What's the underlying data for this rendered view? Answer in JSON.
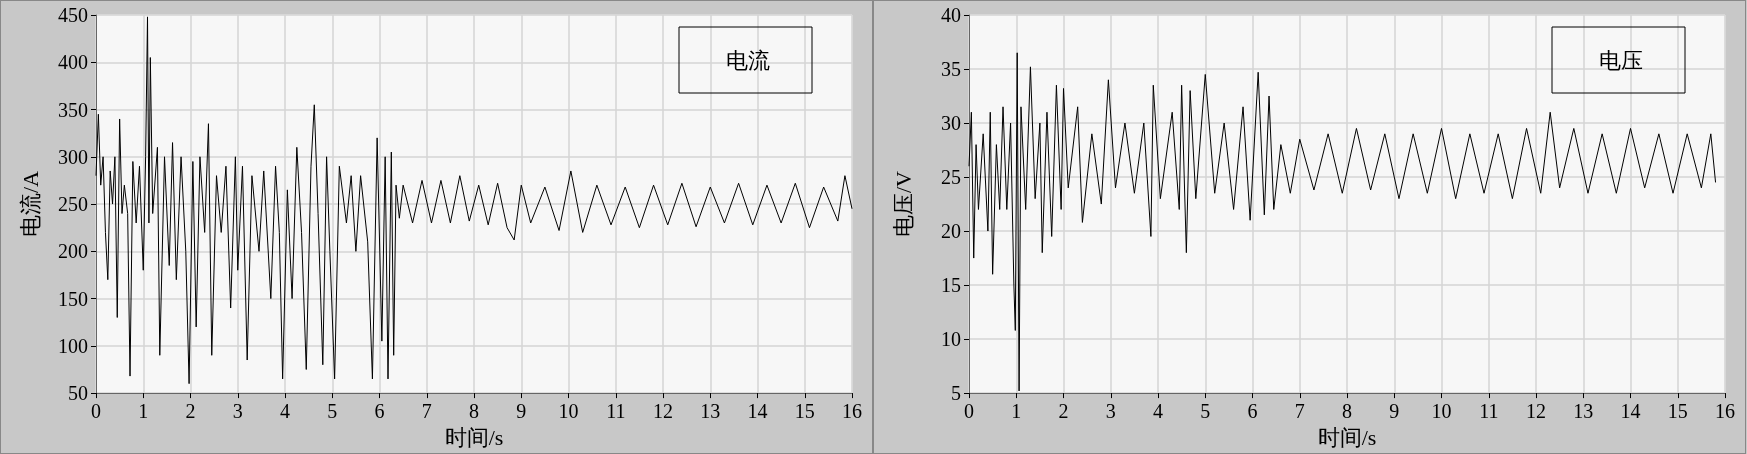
{
  "chart_data": [
    {
      "type": "line",
      "xlabel": "时间/s",
      "ylabel": "电流/A",
      "xlim": [
        0,
        16
      ],
      "xticks": [
        0,
        1,
        2,
        3,
        4,
        5,
        6,
        7,
        8,
        9,
        10,
        11,
        12,
        13,
        14,
        15,
        16
      ],
      "ylim": [
        50,
        450
      ],
      "yticks": [
        50,
        100,
        150,
        200,
        250,
        300,
        350,
        400,
        450
      ],
      "grid": true,
      "legend": "top right",
      "marker": "none",
      "line_style": "solid",
      "series": [
        {
          "name": "电流",
          "color": "#000000",
          "x": [
            0,
            0.05,
            0.1,
            0.15,
            0.2,
            0.25,
            0.3,
            0.35,
            0.4,
            0.45,
            0.5,
            0.55,
            0.6,
            0.67,
            0.72,
            0.78,
            0.85,
            0.92,
            1.0,
            1.05,
            1.09,
            1.12,
            1.15,
            1.2,
            1.3,
            1.35,
            1.45,
            1.55,
            1.62,
            1.7,
            1.8,
            1.9,
            1.97,
            2.05,
            2.12,
            2.2,
            2.3,
            2.38,
            2.45,
            2.55,
            2.65,
            2.75,
            2.85,
            2.95,
            3.0,
            3.1,
            3.2,
            3.3,
            3.45,
            3.55,
            3.7,
            3.8,
            3.88,
            3.95,
            4.05,
            4.15,
            4.25,
            4.35,
            4.45,
            4.55,
            4.62,
            4.7,
            4.8,
            4.88,
            4.95,
            5.05,
            5.15,
            5.3,
            5.4,
            5.5,
            5.6,
            5.75,
            5.85,
            5.95,
            6.05,
            6.12,
            6.18,
            6.25,
            6.3,
            6.35,
            6.42,
            6.5,
            6.7,
            6.9,
            7.1,
            7.3,
            7.5,
            7.7,
            7.9,
            8.1,
            8.3,
            8.5,
            8.7,
            8.85,
            9.0,
            9.2,
            9.5,
            9.8,
            10.05,
            10.3,
            10.6,
            10.9,
            11.2,
            11.5,
            11.8,
            12.1,
            12.4,
            12.7,
            13.0,
            13.3,
            13.6,
            13.9,
            14.2,
            14.5,
            14.8,
            15.1,
            15.4,
            15.7,
            15.85,
            16.0
          ],
          "values": [
            280,
            345,
            270,
            300,
            220,
            170,
            285,
            250,
            300,
            130,
            340,
            240,
            270,
            240,
            68,
            295,
            230,
            290,
            180,
            300,
            448,
            230,
            405,
            240,
            310,
            90,
            300,
            185,
            315,
            170,
            300,
            200,
            60,
            295,
            120,
            300,
            220,
            335,
            90,
            280,
            220,
            290,
            140,
            300,
            180,
            290,
            85,
            280,
            200,
            285,
            150,
            290,
            220,
            65,
            265,
            150,
            310,
            220,
            75,
            290,
            355,
            240,
            80,
            300,
            200,
            65,
            290,
            230,
            280,
            200,
            280,
            210,
            65,
            320,
            105,
            300,
            65,
            305,
            90,
            270,
            235,
            270,
            230,
            275,
            230,
            275,
            230,
            280,
            232,
            270,
            228,
            272,
            225,
            212,
            270,
            230,
            268,
            222,
            285,
            220,
            270,
            228,
            268,
            225,
            270,
            228,
            272,
            226,
            268,
            230,
            272,
            228,
            270,
            230,
            272,
            225,
            268,
            232,
            280,
            245
          ]
        }
      ]
    },
    {
      "type": "line",
      "xlabel": "时间/s",
      "ylabel": "电压/V",
      "xlim": [
        0,
        16
      ],
      "xticks": [
        0,
        1,
        2,
        3,
        4,
        5,
        6,
        7,
        8,
        9,
        10,
        11,
        12,
        13,
        14,
        15,
        16
      ],
      "ylim": [
        5,
        40
      ],
      "yticks": [
        5,
        10,
        15,
        20,
        25,
        30,
        35,
        40
      ],
      "grid": true,
      "legend": "top right",
      "marker": "none",
      "line_style": "solid",
      "series": [
        {
          "name": "电压",
          "color": "#000000",
          "x": [
            0,
            0.05,
            0.1,
            0.15,
            0.2,
            0.3,
            0.4,
            0.45,
            0.5,
            0.58,
            0.65,
            0.72,
            0.8,
            0.88,
            0.95,
            0.98,
            1.02,
            1.06,
            1.1,
            1.2,
            1.3,
            1.4,
            1.5,
            1.55,
            1.65,
            1.75,
            1.85,
            1.95,
            2.0,
            2.1,
            2.3,
            2.4,
            2.6,
            2.8,
            2.95,
            3.1,
            3.3,
            3.5,
            3.7,
            3.85,
            3.9,
            4.05,
            4.3,
            4.45,
            4.5,
            4.6,
            4.68,
            4.8,
            5.0,
            5.2,
            5.4,
            5.6,
            5.8,
            5.95,
            6.12,
            6.25,
            6.35,
            6.45,
            6.6,
            6.8,
            7.0,
            7.3,
            7.6,
            7.9,
            8.2,
            8.5,
            8.8,
            9.1,
            9.4,
            9.7,
            10.0,
            10.3,
            10.6,
            10.9,
            11.2,
            11.5,
            11.8,
            12.1,
            12.3,
            12.5,
            12.8,
            13.1,
            13.4,
            13.7,
            14.0,
            14.3,
            14.6,
            14.9,
            15.2,
            15.5,
            15.7,
            15.8
          ],
          "values": [
            26,
            31,
            17.5,
            28,
            22,
            29,
            20,
            31,
            16,
            28,
            22,
            31.5,
            22,
            30,
            15,
            10.8,
            36.5,
            5.2,
            31.5,
            22,
            35.2,
            23,
            30,
            18,
            31,
            19.5,
            33.5,
            22,
            33.2,
            24,
            31.5,
            20.8,
            29,
            22.5,
            34,
            24,
            30,
            23.5,
            30,
            19.5,
            33.5,
            23,
            31,
            22,
            33.5,
            18,
            33,
            23,
            34.5,
            23.5,
            30,
            22,
            31.5,
            21,
            34.7,
            21.5,
            32.5,
            22,
            28,
            23.5,
            28.5,
            23.8,
            29,
            23.5,
            29.5,
            23.8,
            29,
            23,
            29,
            23.5,
            29.5,
            23,
            29,
            23.5,
            29,
            23,
            29.5,
            23.5,
            31,
            24,
            29.5,
            23.5,
            29,
            23.5,
            29.5,
            24,
            29,
            23.5,
            29,
            24,
            29,
            24.5
          ]
        }
      ]
    }
  ]
}
